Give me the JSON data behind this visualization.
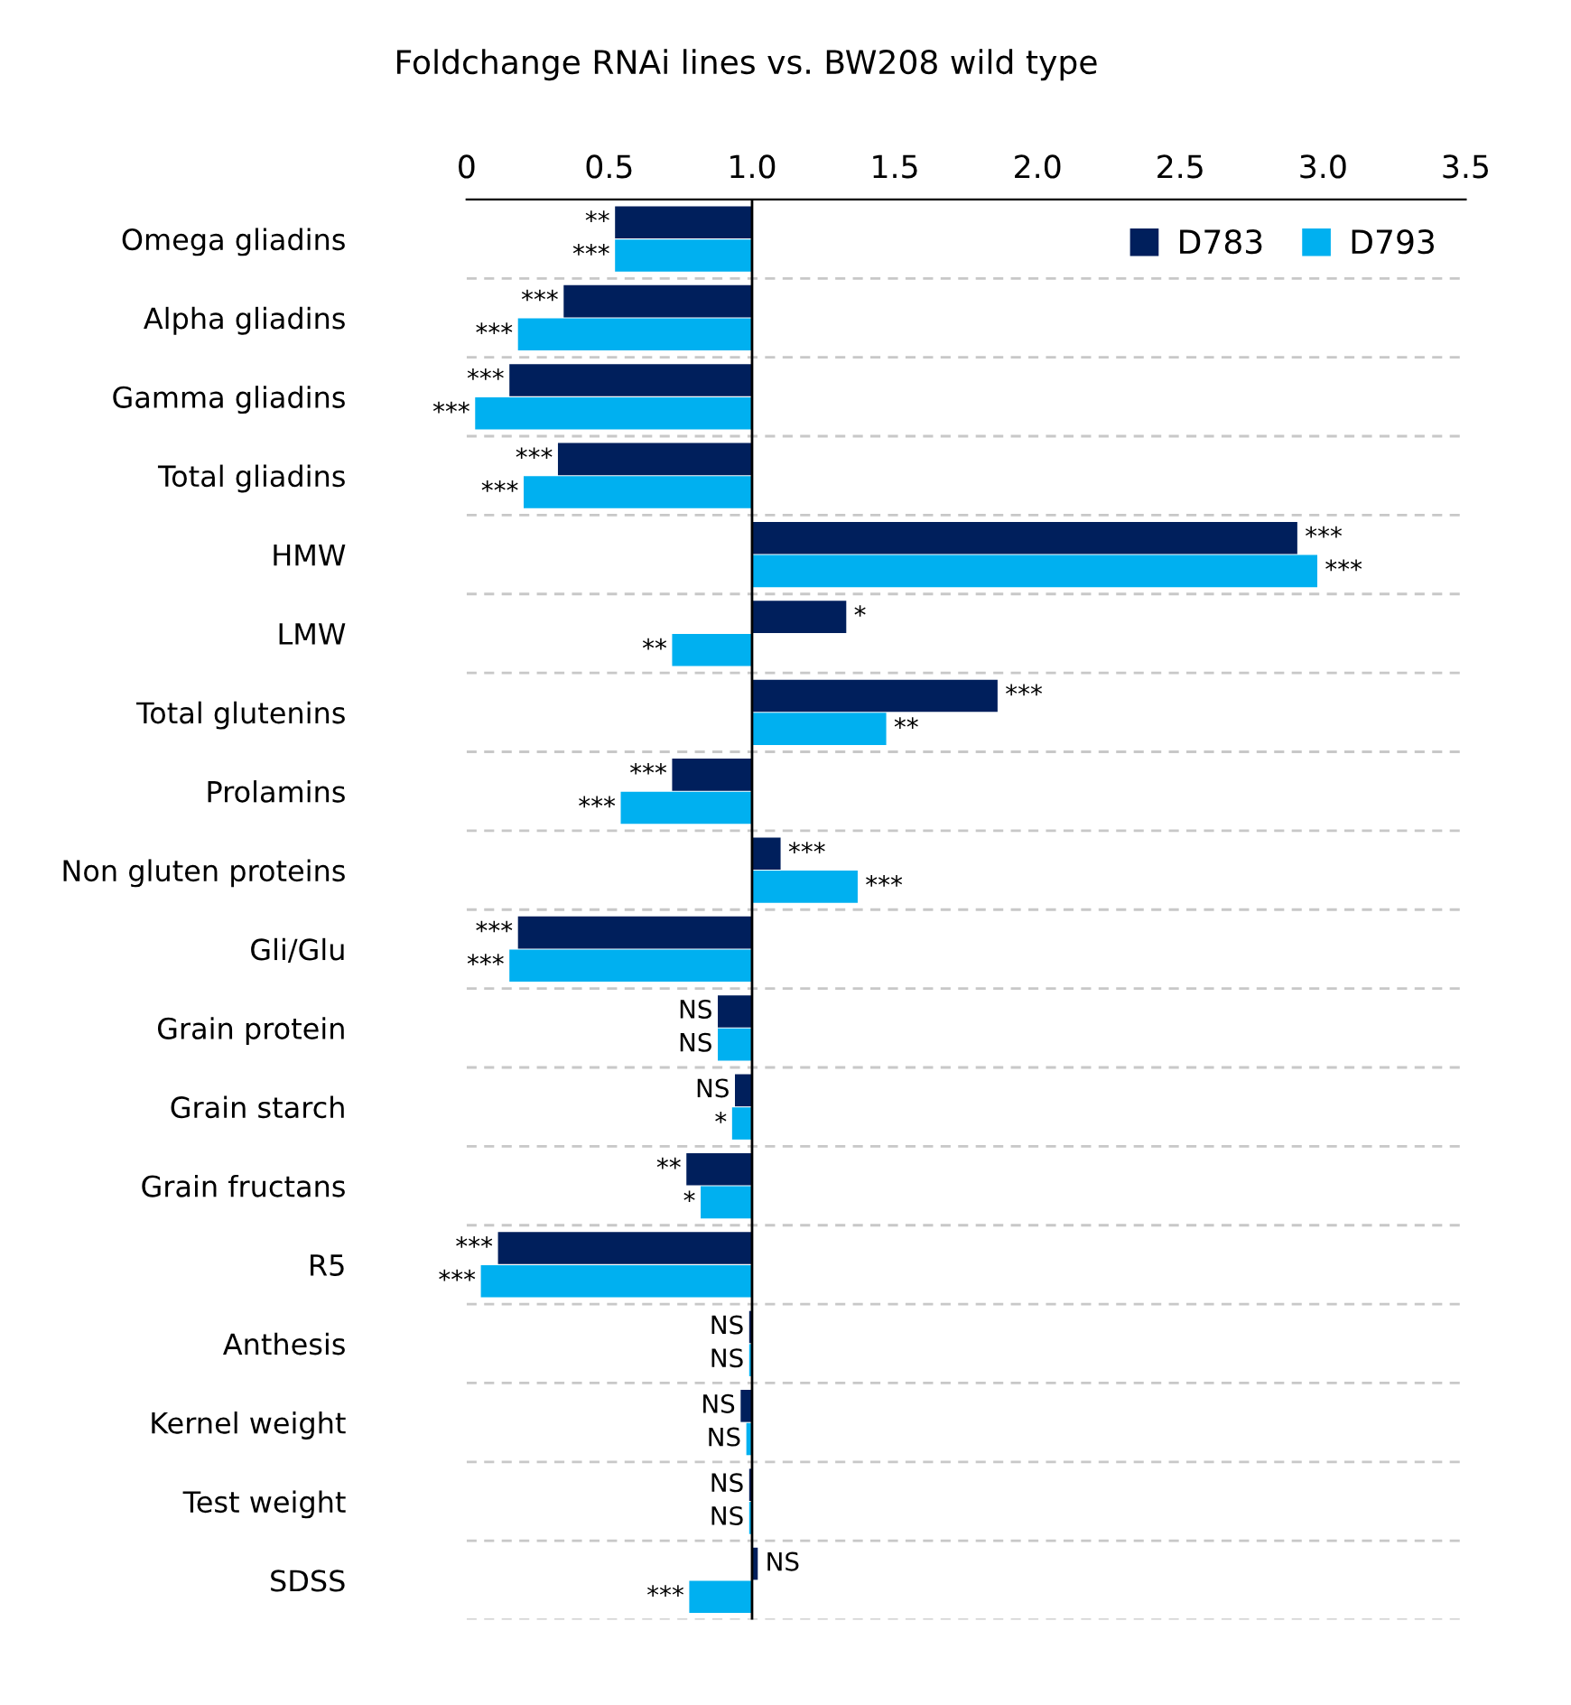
{
  "chart_data": {
    "type": "bar",
    "orientation": "horizontal",
    "title": "Foldchange RNAi lines vs. BW208 wild type",
    "categories": [
      "Omega gliadins",
      "Alpha gliadins",
      "Gamma gliadins",
      "Total gliadins",
      "HMW",
      "LMW",
      "Total glutenins",
      "Prolamins",
      "Non gluten proteins",
      "Gli/Glu",
      "Grain protein",
      "Grain starch",
      "Grain fructans",
      "R5",
      "Anthesis",
      "Kernel weight",
      "Test weight",
      "SDSS"
    ],
    "ref_lines": [
      {
        "axis": "x",
        "value": 1,
        "color": "#000000"
      }
    ],
    "series": [
      {
        "name": "D783",
        "color": "#001f5c",
        "base": [
          1,
          1,
          1,
          1,
          1,
          1,
          1,
          1,
          1,
          1,
          1,
          1,
          1,
          1,
          1,
          1,
          1,
          1
        ],
        "values": [
          -0.48,
          -0.66,
          -0.85,
          -0.68,
          1.91,
          0.33,
          0.86,
          -0.28,
          0.1,
          -0.82,
          -0.12,
          -0.06,
          -0.23,
          -0.89,
          -0.01,
          -0.04,
          -0.01,
          0.02
        ],
        "value_labels": [
          "**",
          "***",
          "***",
          "***",
          "***",
          "*",
          "***",
          "***",
          "***",
          "***",
          "NS",
          "NS",
          "**",
          "***",
          "NS",
          "NS",
          "NS",
          "NS"
        ]
      },
      {
        "name": "D793",
        "color": "#00b0f0",
        "base": [
          1,
          1,
          1,
          1,
          1,
          1,
          1,
          1,
          1,
          1,
          1,
          1,
          1,
          1,
          1,
          1,
          1,
          1
        ],
        "values": [
          -0.48,
          -0.82,
          -0.97,
          -0.8,
          1.98,
          -0.28,
          0.47,
          -0.46,
          0.37,
          -0.85,
          -0.12,
          -0.07,
          -0.18,
          -0.95,
          -0.01,
          -0.02,
          -0.01,
          -0.22
        ],
        "value_labels": [
          "***",
          "***",
          "***",
          "***",
          "***",
          "**",
          "**",
          "***",
          "***",
          "***",
          "NS",
          "*",
          "*",
          "***",
          "NS",
          "NS",
          "NS",
          "***"
        ]
      }
    ],
    "xlim": [
      0,
      3.5
    ],
    "xticks": [
      0,
      0.5,
      {
        "value": 1,
        "label": "1.0"
      },
      1.5,
      {
        "value": 2,
        "label": "2.0"
      },
      2.5,
      {
        "value": 3,
        "label": "3.0"
      },
      3.5
    ],
    "grid": "y",
    "legend": "top right"
  }
}
